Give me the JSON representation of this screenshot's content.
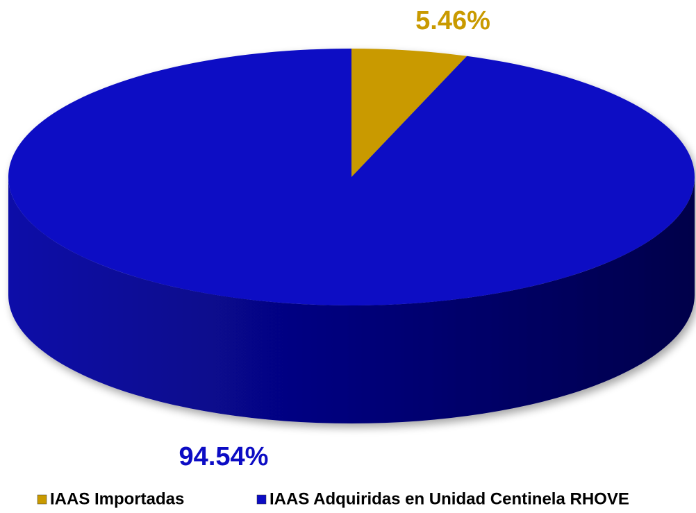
{
  "chart_data": {
    "type": "pie",
    "categories": [
      "IAAS Importadas",
      "IAAS Adquiridas en Unidad Centinela RHOVE"
    ],
    "values": [
      5.46,
      94.54
    ],
    "value_labels": [
      "5.46%",
      "94.54%"
    ],
    "colors": [
      "#c99a00",
      "#0c0cc4"
    ],
    "legend": "bottom"
  }
}
